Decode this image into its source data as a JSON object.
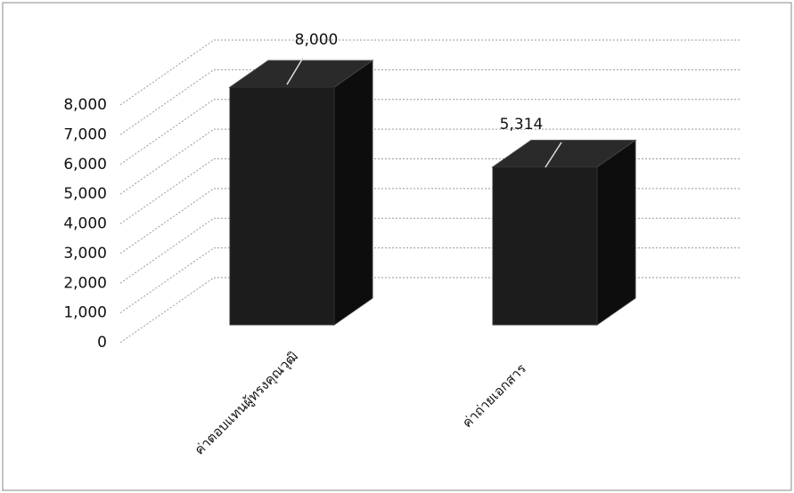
{
  "chart_data": {
    "type": "bar3d",
    "categories": [
      "ค่าตอบแทนผู้ทรงคุณวุฒิ",
      "ค่าถ่ายเอกสาร"
    ],
    "values": [
      8000,
      5314
    ],
    "value_labels": [
      "8,000",
      "5,314"
    ],
    "color": "#1c1c1c",
    "ylim": [
      0,
      8000
    ],
    "yticks": [
      0,
      {
        "value": 1000,
        "label": "1,000"
      },
      {
        "value": 2000,
        "label": "2,000"
      },
      {
        "value": 3000,
        "label": "3,000"
      },
      {
        "value": 4000,
        "label": "4,000"
      },
      {
        "value": 5000,
        "label": "5,000"
      },
      {
        "value": 6000,
        "label": "6,000"
      },
      {
        "value": 7000,
        "label": "7,000"
      },
      {
        "value": 8000,
        "label": "8,000"
      }
    ],
    "grid": true
  }
}
